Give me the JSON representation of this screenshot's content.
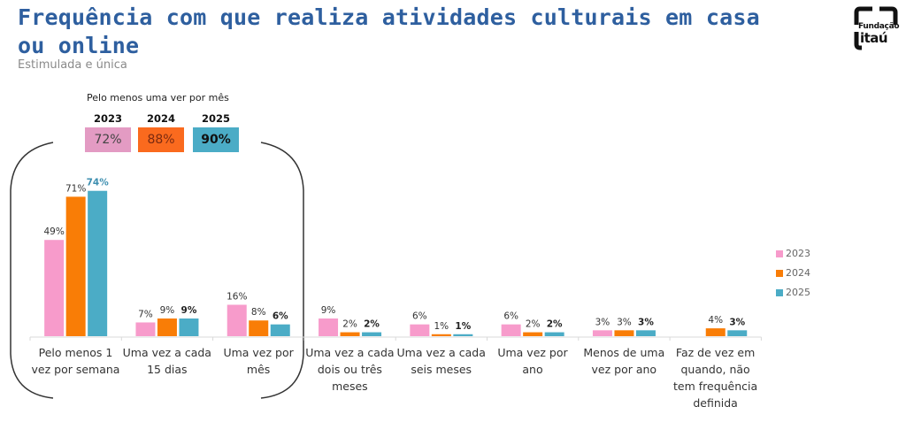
{
  "header": {
    "title": "Frequência com que realiza atividades culturais em casa ou online",
    "subtitle": "Estimulada e única",
    "logo_line1": "Fundação",
    "logo_line2": "itaú"
  },
  "summary": {
    "title": "Pelo menos uma ver por mês",
    "items": [
      {
        "year": "2023",
        "value": "72%",
        "color": "#E39BC3",
        "text_color": "#444444",
        "bold": false
      },
      {
        "year": "2024",
        "value": "88%",
        "color": "#FA6A1E",
        "text_color": "#7a2a10",
        "bold": false
      },
      {
        "year": "2025",
        "value": "90%",
        "color": "#4BACC6",
        "text_color": "#111111",
        "bold": true
      }
    ]
  },
  "chart_data": {
    "type": "bar",
    "title": "Frequência com que realiza atividades culturais em casa ou online",
    "subtitle": "Estimulada e única",
    "xlabel": "",
    "ylabel": "",
    "ylim": [
      0,
      80
    ],
    "grid": false,
    "legend_position": "right",
    "categories": [
      [
        "Pelo menos 1",
        "vez por semana"
      ],
      [
        "Uma vez a cada",
        "15 dias"
      ],
      [
        "Uma vez por",
        "mês"
      ],
      [
        "Uma vez a cada",
        "dois ou três",
        "meses"
      ],
      [
        "Uma vez a cada",
        "seis meses"
      ],
      [
        "Uma vez por ano"
      ],
      [
        "Menos de uma",
        "vez por ano"
      ],
      [
        "Faz de vez em",
        "quando, não",
        "tem frequência",
        "definida"
      ]
    ],
    "series": [
      {
        "name": "2023",
        "color": "#F79BCB",
        "values": [
          49,
          7,
          16,
          9,
          6,
          6,
          3,
          null
        ],
        "labels": [
          "49%",
          "7%",
          "16%",
          "9%",
          "6%",
          "6%",
          "3%",
          ""
        ]
      },
      {
        "name": "2024",
        "color": "#F97D06",
        "values": [
          71,
          9,
          8,
          2,
          1,
          2,
          3,
          4
        ],
        "labels": [
          "71%",
          "9%",
          "8%",
          "2%",
          "1%",
          "2%",
          "3%",
          "4%"
        ]
      },
      {
        "name": "2025",
        "color": "#4BACC6",
        "values": [
          74,
          9,
          6,
          2,
          1,
          2,
          3,
          3
        ],
        "labels": [
          "74%",
          "9%",
          "6%",
          "2%",
          "1%",
          "2%",
          "3%",
          "3%"
        ]
      }
    ],
    "annotations": [
      "Pelo menos uma ver por mês: 2023 72%, 2024 88%, 2025 90%"
    ]
  }
}
